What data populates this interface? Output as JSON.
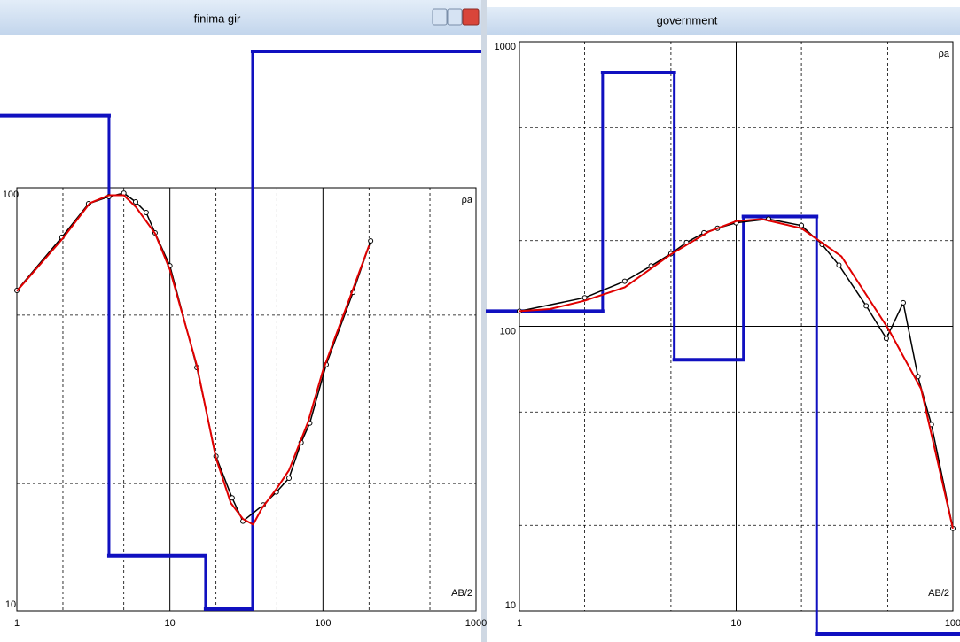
{
  "chart_data": [
    {
      "type": "line",
      "title": "finima gir",
      "x_label": "AB/2",
      "y_label": "ρa",
      "log_x": true,
      "log_y": true,
      "xlim": [
        1,
        1000
      ],
      "ylim": [
        10,
        100
      ],
      "xticks": [
        1,
        10,
        100,
        1000
      ],
      "yticks": [
        10,
        100
      ],
      "minor_xgrid": [
        2,
        5,
        20,
        50,
        200,
        500
      ],
      "minor_ygrid": [
        20,
        50
      ],
      "series": [
        {
          "color": "#000000",
          "markers": true,
          "x": [
            1,
            1.97,
            2.94,
            4,
            5,
            5.97,
            7,
            8,
            10,
            15,
            20,
            25.5,
            30,
            40.7,
            49.6,
            60,
            72,
            82,
            105,
            157,
            205
          ],
          "values": [
            57.2,
            76.4,
            91.7,
            95.3,
            97.1,
            92.6,
            87.4,
            78.2,
            65.4,
            37.6,
            23.2,
            18.5,
            16.3,
            17.8,
            19.1,
            20.6,
            25,
            27.8,
            38.2,
            56.6,
            74.9
          ]
        },
        {
          "color": "#e00000",
          "markers": false,
          "x": [
            1,
            2,
            3,
            4,
            5,
            6,
            8,
            10,
            15,
            20,
            25,
            30,
            35,
            40,
            50,
            60,
            80,
            100,
            150,
            200
          ],
          "values": [
            57,
            76,
            92,
            96,
            96,
            90,
            78,
            64,
            38,
            23,
            18,
            16.5,
            16,
            17.5,
            19.5,
            21.5,
            28,
            37,
            55,
            73
          ]
        }
      ],
      "model": {
        "color": "#1010c0",
        "boundaries": [
          4,
          17.1,
          34.7
        ],
        "values": [
          148,
          13.5,
          10.1,
          210
        ]
      }
    },
    {
      "type": "line",
      "title": "government",
      "x_label": "AB/2",
      "y_label": "ρa",
      "log_x": true,
      "log_y": true,
      "xlim": [
        1,
        100
      ],
      "ylim": [
        10,
        1000
      ],
      "xticks": [
        1,
        10,
        100
      ],
      "yticks": [
        10,
        100,
        1000
      ],
      "minor_xgrid": [
        2,
        5,
        20,
        50
      ],
      "minor_ygrid": [
        20,
        50,
        200,
        500
      ],
      "series": [
        {
          "color": "#000000",
          "markers": true,
          "x": [
            1,
            2,
            3.06,
            4.05,
            5,
            5.9,
            7.1,
            8.2,
            10,
            14.1,
            20,
            24.9,
            29.8,
            39.8,
            49.3,
            59,
            69,
            79.6,
            100
          ],
          "values": [
            113,
            126,
            144,
            163,
            180,
            197,
            213,
            221,
            231,
            238,
            226,
            194,
            164,
            118,
            90.6,
            121,
            66.6,
            45.2,
            19.5
          ]
        },
        {
          "color": "#e00000",
          "markers": false,
          "x": [
            1,
            1.38,
            2,
            3.06,
            5,
            7.47,
            10,
            13.1,
            20,
            30.6,
            50.4,
            71.3,
            100
          ],
          "values": [
            113,
            115,
            123,
            137,
            179,
            215,
            234,
            238,
            221,
            176,
            97.9,
            60.3,
            19.5
          ]
        }
      ],
      "model": {
        "color": "#1010c0",
        "boundaries": [
          2.42,
          5.18,
          10.8,
          23.5
        ],
        "values": [
          113,
          778,
          76.3,
          243,
          8.3
        ]
      }
    }
  ]
}
